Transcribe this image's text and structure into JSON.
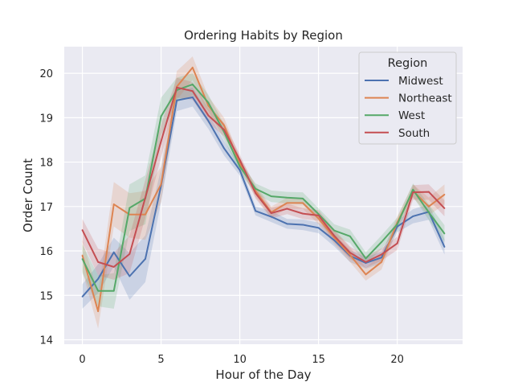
{
  "chart_data": {
    "type": "line",
    "title": "Ordering Habits by Region",
    "xlabel": "Hour of the Day",
    "ylabel": "Order Count",
    "xlim": [
      -1.15,
      24.15
    ],
    "ylim": [
      13.9,
      20.6
    ],
    "x_ticks": [
      0,
      5,
      10,
      15,
      20
    ],
    "y_ticks": [
      14,
      15,
      16,
      17,
      18,
      19,
      20
    ],
    "grid": true,
    "background": "#eaeaf2",
    "legend": {
      "title": "Region",
      "position": "top-right"
    },
    "x": [
      0,
      1,
      2,
      3,
      4,
      5,
      6,
      7,
      8,
      9,
      10,
      11,
      12,
      13,
      14,
      15,
      16,
      17,
      18,
      19,
      20,
      21,
      22,
      23
    ],
    "series": [
      {
        "name": "Midwest",
        "color": "#4c72b0",
        "values": [
          14.97,
          15.37,
          15.97,
          15.43,
          15.82,
          17.47,
          19.39,
          19.46,
          18.93,
          18.31,
          17.82,
          16.9,
          16.77,
          16.61,
          16.59,
          16.52,
          16.24,
          15.89,
          15.73,
          15.85,
          16.55,
          16.78,
          16.88,
          16.09
        ],
        "lower": [
          14.7,
          15.05,
          15.65,
          14.9,
          15.3,
          17.1,
          19.15,
          19.25,
          18.75,
          18.15,
          17.7,
          16.8,
          16.65,
          16.5,
          16.47,
          16.4,
          16.1,
          15.75,
          15.6,
          15.72,
          16.42,
          16.62,
          16.7,
          15.92
        ],
        "upper": [
          15.25,
          15.7,
          16.3,
          15.95,
          16.35,
          17.85,
          19.6,
          19.68,
          19.1,
          18.48,
          17.95,
          17.0,
          16.9,
          16.72,
          16.71,
          16.64,
          16.38,
          16.02,
          15.86,
          15.98,
          16.68,
          16.94,
          17.05,
          16.26
        ]
      },
      {
        "name": "Northeast",
        "color": "#dd8452",
        "values": [
          15.9,
          14.64,
          17.05,
          16.82,
          16.82,
          17.5,
          19.7,
          20.13,
          19.27,
          18.83,
          17.97,
          17.35,
          16.87,
          17.08,
          17.08,
          16.73,
          16.3,
          15.91,
          15.47,
          15.75,
          16.64,
          17.35,
          17.0,
          17.27
        ],
        "lower": [
          15.55,
          14.25,
          16.55,
          16.3,
          16.25,
          17.1,
          19.4,
          19.85,
          19.05,
          18.65,
          17.85,
          17.22,
          16.75,
          16.95,
          16.95,
          16.6,
          16.15,
          15.75,
          15.33,
          15.58,
          16.5,
          17.2,
          16.8,
          17.05
        ],
        "upper": [
          16.25,
          15.05,
          17.55,
          17.3,
          17.35,
          17.9,
          20.05,
          20.38,
          19.48,
          19.0,
          18.1,
          17.48,
          17.0,
          17.2,
          17.2,
          16.86,
          16.45,
          16.08,
          15.62,
          15.92,
          16.78,
          17.5,
          17.2,
          17.5
        ]
      },
      {
        "name": "West",
        "color": "#55a868",
        "values": [
          15.82,
          15.1,
          15.1,
          16.97,
          17.18,
          19.03,
          19.62,
          19.75,
          19.34,
          18.68,
          17.9,
          17.4,
          17.23,
          17.2,
          17.18,
          16.83,
          16.46,
          16.33,
          15.83,
          16.2,
          16.6,
          17.38,
          16.87,
          16.39
        ],
        "lower": [
          15.5,
          14.75,
          14.7,
          16.45,
          16.6,
          18.6,
          19.35,
          19.5,
          19.15,
          18.5,
          17.78,
          17.28,
          17.1,
          17.07,
          17.05,
          16.7,
          16.32,
          16.18,
          15.7,
          16.05,
          16.45,
          17.22,
          16.7,
          16.2
        ],
        "upper": [
          16.15,
          15.45,
          15.5,
          17.5,
          17.7,
          19.45,
          19.9,
          20.0,
          19.52,
          18.85,
          18.02,
          17.52,
          17.36,
          17.33,
          17.32,
          16.96,
          16.6,
          16.48,
          15.97,
          16.35,
          16.75,
          17.52,
          17.05,
          16.58
        ]
      },
      {
        "name": "South",
        "color": "#c44e52",
        "values": [
          16.47,
          15.75,
          15.64,
          15.93,
          17.2,
          18.47,
          19.68,
          19.6,
          19.05,
          18.73,
          18.05,
          17.3,
          16.85,
          16.95,
          16.84,
          16.8,
          16.34,
          15.96,
          15.75,
          15.92,
          16.17,
          17.32,
          17.33,
          16.96
        ],
        "lower": [
          16.2,
          15.45,
          15.35,
          15.5,
          16.75,
          18.1,
          19.45,
          19.4,
          18.88,
          18.58,
          17.93,
          17.18,
          16.73,
          16.83,
          16.72,
          16.68,
          16.2,
          15.82,
          15.62,
          15.78,
          16.02,
          17.15,
          17.15,
          16.78
        ],
        "upper": [
          16.72,
          16.05,
          15.95,
          16.35,
          17.6,
          18.85,
          19.9,
          19.8,
          19.22,
          18.88,
          18.17,
          17.42,
          16.97,
          17.07,
          16.96,
          16.92,
          16.48,
          16.1,
          15.88,
          16.06,
          16.32,
          17.48,
          17.5,
          17.14
        ]
      }
    ]
  }
}
